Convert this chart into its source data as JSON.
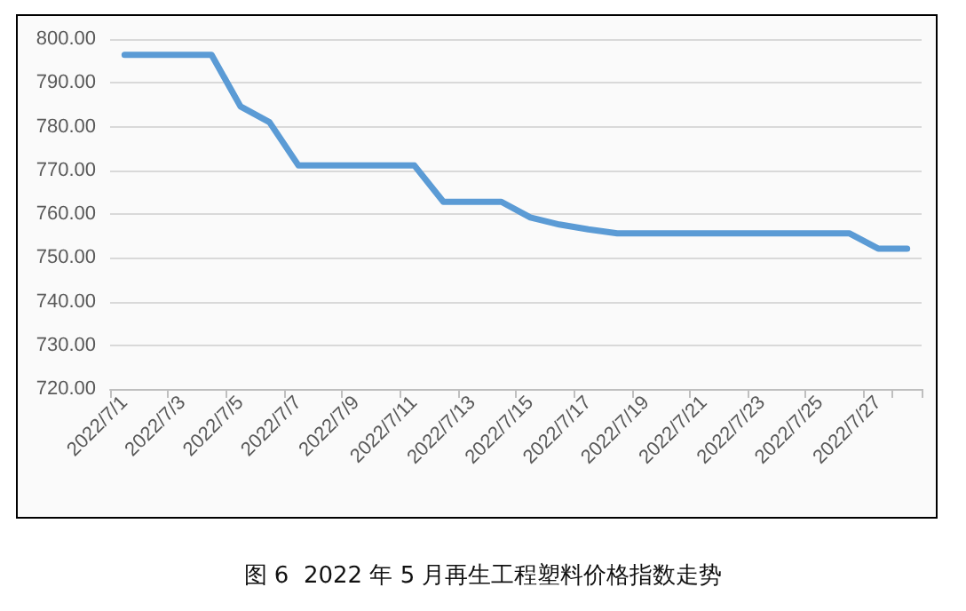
{
  "chart_data": {
    "type": "line",
    "title": "图 6  2022 年 5 月再生工程塑料价格指数走势",
    "categories": [
      "2022/7/1",
      null,
      "2022/7/3",
      null,
      "2022/7/5",
      null,
      "2022/7/7",
      null,
      "2022/7/9",
      null,
      "2022/7/11",
      null,
      "2022/7/13",
      null,
      "2022/7/15",
      null,
      "2022/7/17",
      null,
      "2022/7/19",
      null,
      "2022/7/21",
      null,
      "2022/7/23",
      null,
      "2022/7/25",
      null,
      "2022/7/27",
      null
    ],
    "series": [
      {
        "color": "#5b9bd5",
        "values": [
          796.4,
          796.4,
          796.4,
          796.4,
          784.6,
          781,
          771.1,
          771.1,
          771.1,
          771.1,
          771.1,
          762.8,
          762.8,
          762.8,
          759.2,
          757.6,
          756.5,
          755.6,
          755.6,
          755.6,
          755.6,
          755.6,
          755.6,
          755.6,
          755.6,
          755.6,
          752.1,
          752.1
        ]
      }
    ],
    "ylim": [
      720,
      800
    ],
    "yticks": [
      {
        "value": 720,
        "label": "720.00"
      },
      {
        "value": 730,
        "label": "730.00"
      },
      {
        "value": 740,
        "label": "740.00"
      },
      {
        "value": 750,
        "label": "750.00"
      },
      {
        "value": 760,
        "label": "760.00"
      },
      {
        "value": 770,
        "label": "770.00"
      },
      {
        "value": 780,
        "label": "780.00"
      },
      {
        "value": 790,
        "label": "790.00"
      },
      {
        "value": 800,
        "label": "800.00"
      }
    ],
    "grid": "y",
    "marker": "none",
    "line_style": "solid"
  }
}
